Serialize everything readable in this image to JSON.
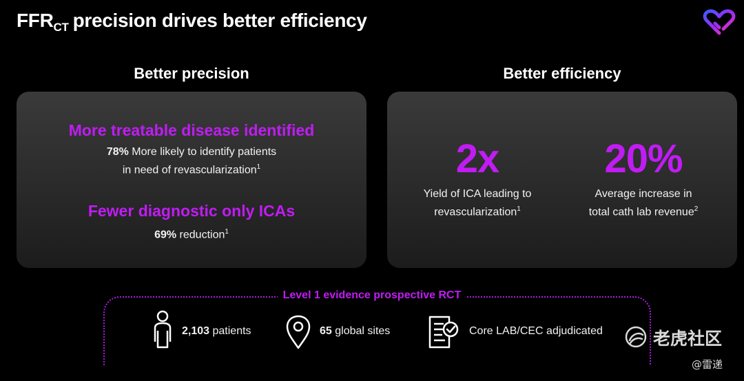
{
  "title": {
    "main": "FFR",
    "sub": "CT",
    "rest": "precision drives better efficiency"
  },
  "left": {
    "heading": "Better precision",
    "item1": {
      "headline": "More treatable disease identified",
      "stat": "78%",
      "text_line1": "More likely to identify patients",
      "text_line2": "in need of revascularization",
      "note": "1"
    },
    "item2": {
      "headline": "Fewer diagnostic only ICAs",
      "stat": "69%",
      "text": "reduction",
      "note": "1"
    }
  },
  "right": {
    "heading": "Better efficiency",
    "metric1": {
      "value": "2x",
      "label_line1": "Yield of ICA leading to",
      "label_line2": "revascularization",
      "note": "1"
    },
    "metric2": {
      "value": "20%",
      "label_line1": "Average increase in",
      "label_line2": "total cath lab revenue",
      "note": "2"
    }
  },
  "evidence": {
    "label": "Level 1 evidence prospective RCT",
    "patients": {
      "value": "2,103",
      "text": "patients",
      "icon": "person-icon"
    },
    "sites": {
      "value": "65",
      "text": "global sites",
      "icon": "location-pin-icon"
    },
    "lab": {
      "text": "Core LAB/CEC adjudicated",
      "icon": "checklist-icon"
    }
  },
  "watermark": {
    "text": "老虎社区",
    "sub": "@雷递"
  },
  "colors": {
    "accent": "#c01cf3",
    "panel": "#2e2e2e",
    "background": "#000000"
  }
}
